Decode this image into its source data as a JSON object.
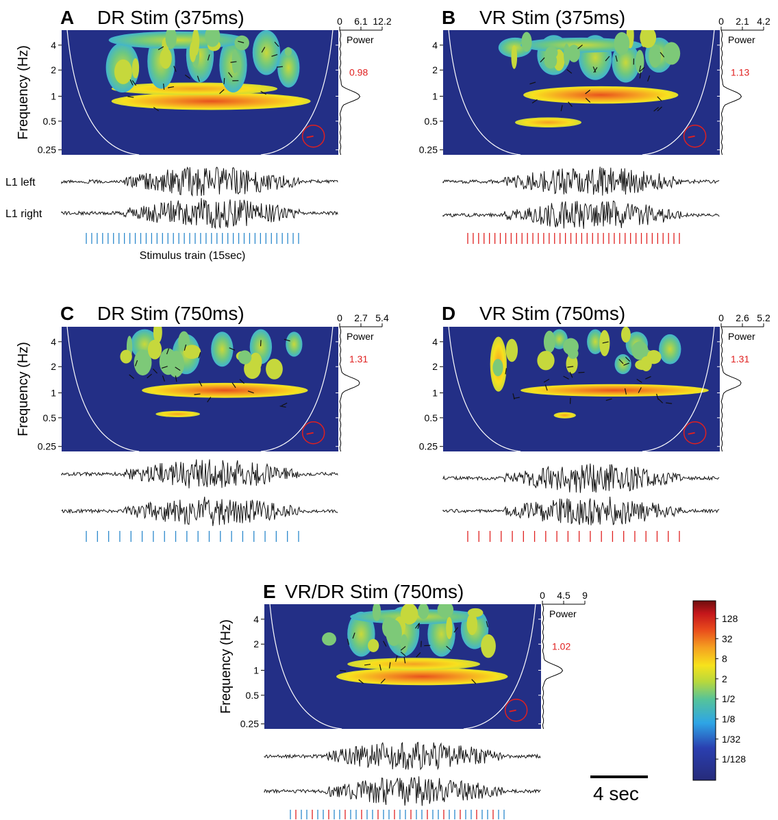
{
  "chart_data": [
    {
      "id": "A",
      "type": "heatmap",
      "letter": "A",
      "title": "DR Stim (375ms)",
      "ylabel": "Frequency (Hz)",
      "y_ticks": [
        "4",
        "2",
        "1",
        "0.5",
        "0.25"
      ],
      "power_ticks": [
        "0",
        "6.1",
        "12.2"
      ],
      "power_label": "Power",
      "peak_frequency_hz": 1,
      "period_label": "0.98",
      "trace_labels": [
        "L1 left",
        "L1 right"
      ],
      "stim_count": 40,
      "stim_colors": [
        "#2a88cc"
      ],
      "stim_label": "Stimulus train (15sec)",
      "colors": {
        "stim": "#2a88cc"
      }
    },
    {
      "id": "B",
      "type": "heatmap",
      "letter": "B",
      "title": "VR Stim (375ms)",
      "ylabel": "",
      "y_ticks": [
        "4",
        "2",
        "1",
        "0.5",
        "0.25"
      ],
      "power_ticks": [
        "0",
        "2.1",
        "4.2"
      ],
      "power_label": "Power",
      "peak_frequency_hz": 1,
      "period_label": "1.13",
      "trace_labels": [
        "",
        ""
      ],
      "stim_count": 40,
      "stim_colors": [
        "#e0201f"
      ],
      "stim_label": "",
      "colors": {
        "stim": "#e0201f"
      }
    },
    {
      "id": "C",
      "type": "heatmap",
      "letter": "C",
      "title": "DR Stim (750ms)",
      "ylabel": "Frequency (Hz)",
      "y_ticks": [
        "4",
        "2",
        "1",
        "0.5",
        "0.25"
      ],
      "power_ticks": [
        "0",
        "2.7",
        "5.4"
      ],
      "power_label": "Power",
      "peak_frequency_hz": 1.3,
      "period_label": "1.31",
      "trace_labels": [
        "",
        ""
      ],
      "stim_count": 20,
      "stim_colors": [
        "#2a88cc"
      ],
      "stim_label": "",
      "colors": {
        "stim": "#2a88cc"
      }
    },
    {
      "id": "D",
      "type": "heatmap",
      "letter": "D",
      "title": "VR Stim (750ms)",
      "ylabel": "",
      "y_ticks": [
        "4",
        "2",
        "1",
        "0.5",
        "0.25"
      ],
      "power_ticks": [
        "0",
        "2.6",
        "5.2"
      ],
      "power_label": "Power",
      "peak_frequency_hz": 1.3,
      "period_label": "1.31",
      "trace_labels": [
        "",
        ""
      ],
      "stim_count": 20,
      "stim_colors": [
        "#e0201f"
      ],
      "stim_label": "",
      "colors": {
        "stim": "#e0201f"
      }
    },
    {
      "id": "E",
      "type": "heatmap",
      "letter": "E",
      "title": "VR/DR Stim (750ms)",
      "ylabel": "Frequency (Hz)",
      "y_ticks": [
        "4",
        "2",
        "1",
        "0.5",
        "0.25"
      ],
      "power_ticks": [
        "0",
        "4.5",
        "9"
      ],
      "power_label": "Power",
      "peak_frequency_hz": 1,
      "period_label": "1.02",
      "trace_labels": [
        "",
        ""
      ],
      "stim_count": 40,
      "stim_colors": [
        "#2a88cc",
        "#e0201f"
      ],
      "stim_label": "",
      "colors": {
        "stim": "#2a88cc"
      }
    }
  ],
  "colorbar": {
    "labels": [
      "128",
      "32",
      "8",
      "2",
      "1/2",
      "1/8",
      "1/32",
      "1/128"
    ],
    "colors": [
      "#2b2f8f",
      "#2a58c8",
      "#2eb2e8",
      "#5fc87e",
      "#c9d93a",
      "#f8e11e",
      "#f6a122",
      "#e8521d",
      "#c0181c",
      "#7a1010"
    ]
  },
  "scale_bar": {
    "label": "4 sec"
  },
  "colors": {
    "background": "#232f86",
    "period": "#e0201f",
    "coi": "#ffffff"
  }
}
